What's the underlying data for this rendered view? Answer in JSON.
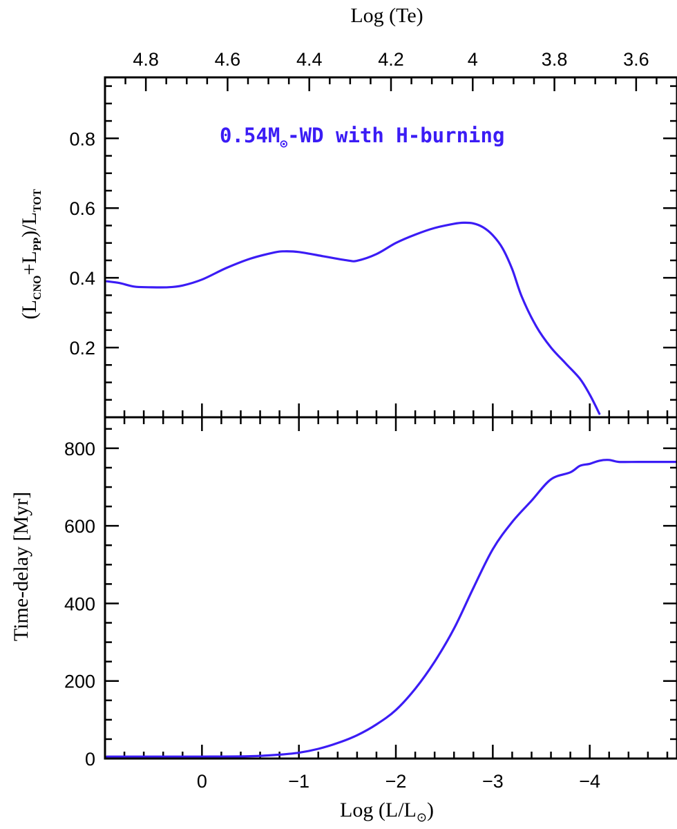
{
  "colors": {
    "curve": "#3b1cf5",
    "axis": "#000000",
    "background": "#ffffff"
  },
  "chart_data": [
    {
      "type": "line",
      "panel": "top",
      "xaxis_top": {
        "label": "Log (Te)",
        "ticks": [
          4.8,
          4.6,
          4.4,
          4.2,
          4.0,
          3.8,
          3.6
        ],
        "tick_labels": [
          "4.8",
          "4.6",
          "4.4",
          "4.2",
          "4",
          "3.8",
          "3.6"
        ],
        "minor_step": 0.05,
        "range": [
          4.9,
          3.5
        ]
      },
      "ylabel": {
        "open": "(L",
        "sub1": "CNO",
        "mid": "+L",
        "sub2": "PP",
        "close": ")/L",
        "sub3": "TOT"
      },
      "ylim": [
        0.0,
        0.975
      ],
      "yticks": [
        0.2,
        0.4,
        0.6,
        0.8
      ],
      "ytick_labels": [
        "0.2",
        "0.4",
        "0.6",
        "0.8"
      ],
      "y_minor_step": 0.05,
      "annotation": {
        "pre": "0.54M",
        "symbol": "⊙",
        "post": "-WD with H-burning"
      },
      "series": [
        {
          "x": [
            0.98,
            0.85,
            0.7,
            0.55,
            0.35,
            0.2,
            0.0,
            -0.25,
            -0.5,
            -0.75,
            -0.85,
            -1.0,
            -1.25,
            -1.5,
            -1.6,
            -1.8,
            -2.0,
            -2.2,
            -2.4,
            -2.6,
            -2.7,
            -2.8,
            -2.9,
            -3.0,
            -3.1,
            -3.2,
            -3.3,
            -3.45,
            -3.6,
            -3.75,
            -3.9,
            -4.0,
            -4.1
          ],
          "y": [
            0.39,
            0.385,
            0.375,
            0.373,
            0.373,
            0.378,
            0.395,
            0.428,
            0.455,
            0.473,
            0.476,
            0.474,
            0.462,
            0.45,
            0.449,
            0.468,
            0.5,
            0.524,
            0.543,
            0.555,
            0.558,
            0.556,
            0.545,
            0.522,
            0.485,
            0.425,
            0.345,
            0.26,
            0.2,
            0.155,
            0.11,
            0.065,
            0.01
          ]
        }
      ]
    },
    {
      "type": "line",
      "panel": "bottom",
      "xlabel": {
        "pre": "Log (L/L",
        "symbol": "⊙",
        "post": ")"
      },
      "xticks": [
        0,
        -1,
        -2,
        -3,
        -4
      ],
      "xtick_labels": [
        "0",
        "−1",
        "−2",
        "−3",
        "−4"
      ],
      "x_minor_step": 0.2,
      "xlim": [
        1.0,
        -4.9
      ],
      "ylabel": "Time-delay [Myr]",
      "ylim": [
        0,
        880
      ],
      "yticks": [
        0,
        200,
        400,
        600,
        800
      ],
      "ytick_labels": [
        "0",
        "200",
        "400",
        "600",
        "800"
      ],
      "y_minor_step": 50,
      "series": [
        {
          "x": [
            0.98,
            0.5,
            0.0,
            -0.5,
            -0.8,
            -1.0,
            -1.2,
            -1.4,
            -1.6,
            -1.8,
            -2.0,
            -2.2,
            -2.4,
            -2.6,
            -2.8,
            -3.0,
            -3.2,
            -3.4,
            -3.6,
            -3.8,
            -3.9,
            -4.0,
            -4.1,
            -4.2,
            -4.3,
            -4.5,
            -4.7,
            -4.9
          ],
          "y": [
            5,
            5,
            5,
            6,
            10,
            15,
            25,
            40,
            60,
            88,
            125,
            180,
            250,
            335,
            440,
            540,
            610,
            665,
            720,
            738,
            755,
            760,
            768,
            770,
            765,
            765,
            765,
            765
          ]
        }
      ]
    }
  ]
}
